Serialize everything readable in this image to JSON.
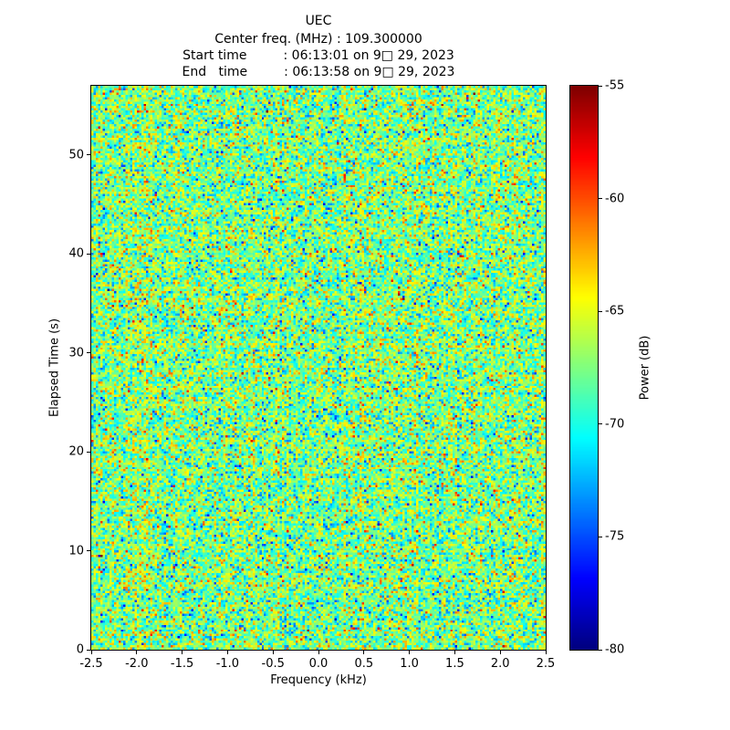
{
  "header": {
    "title": "UEC",
    "center_freq_line": "Center freq. (MHz) : 109.300000",
    "start_line": "Start time         : 06:13:01 on 9□ 29, 2023",
    "end_line": "End   time         : 06:13:58 on 9□ 29, 2023"
  },
  "chart_data": {
    "type": "heatmap",
    "title": "UEC",
    "subtitle_lines": [
      "Center freq. (MHz) : 109.300000",
      "Start time         : 06:13:01 on 9□ 29, 2023",
      "End   time         : 06:13:58 on 9□ 29, 2023"
    ],
    "xlabel": "Frequency (kHz)",
    "ylabel": "Elapsed Time (s)",
    "xlim": [
      -2.5,
      2.5
    ],
    "ylim": [
      0,
      57
    ],
    "xticks": {
      "values": [
        -2.5,
        -2.0,
        -1.5,
        -1.0,
        -0.5,
        0.0,
        0.5,
        1.0,
        1.5,
        2.0,
        2.5
      ],
      "labels": [
        "-2.5",
        "-2.0",
        "-1.5",
        "-1.0",
        "-0.5",
        "0.0",
        "0.5",
        "1.0",
        "1.5",
        "2.0",
        "2.5"
      ]
    },
    "yticks": {
      "values": [
        0,
        10,
        20,
        30,
        40,
        50
      ],
      "labels": [
        "0",
        "10",
        "20",
        "30",
        "40",
        "50"
      ]
    },
    "colorbar": {
      "label": "Power (dB)",
      "colormap": "jet",
      "vmin": -80,
      "vmax": -55,
      "ticks": {
        "values": [
          -55,
          -60,
          -65,
          -70,
          -75,
          -80
        ],
        "labels": [
          "-55",
          "-60",
          "-65",
          "-70",
          "-75",
          "-80"
        ]
      }
    },
    "noise": {
      "description": "uniform broadband noise floor across full band and full sweep, no visible carriers or signal tracks",
      "mean_db": -67.5,
      "std_db": 3.0,
      "col_bias_std_db": 0.5,
      "row_bias_std_db": 0.3,
      "seed": 123457,
      "cols": 200,
      "rows": 250
    }
  }
}
